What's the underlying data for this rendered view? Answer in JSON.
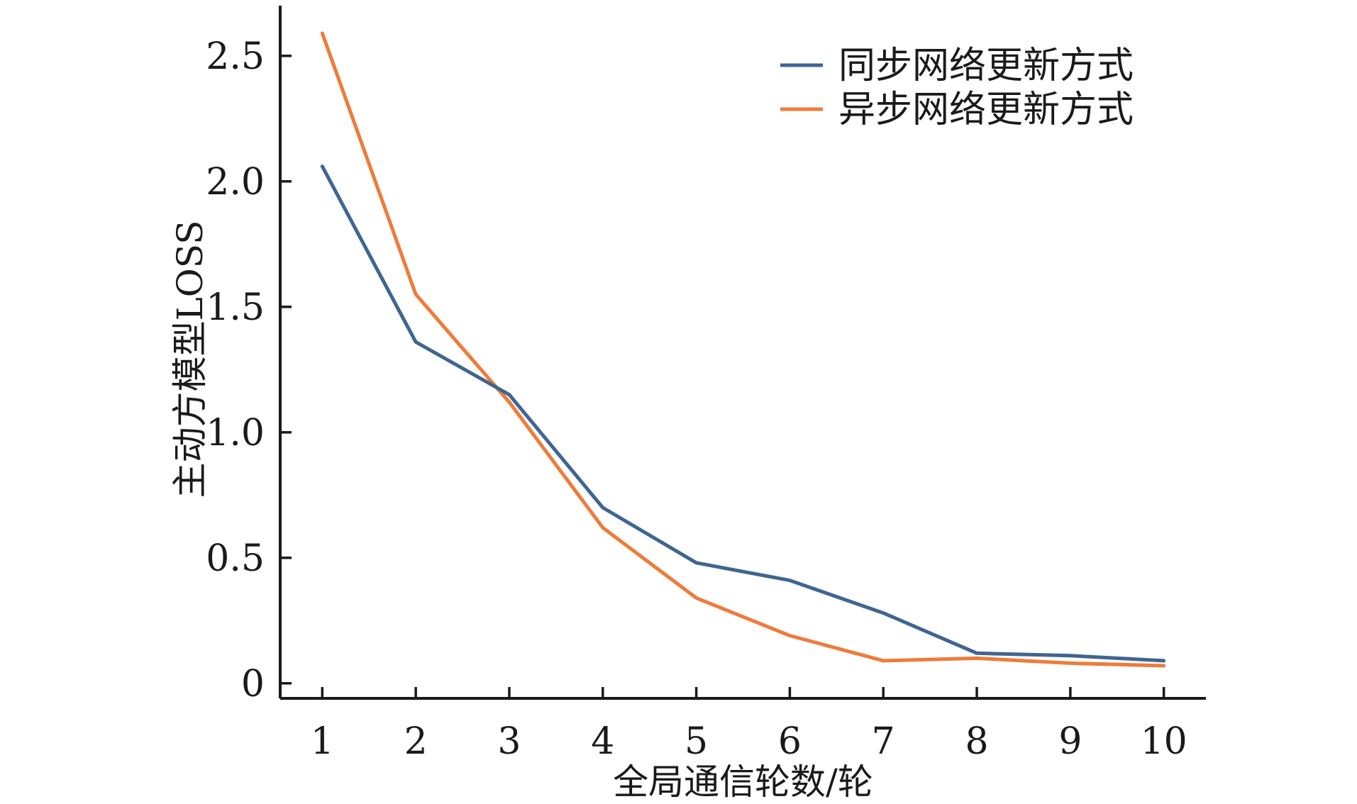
{
  "chart_data": {
    "type": "line",
    "xlabel": "全局通信轮数/轮",
    "ylabel": "主动方模型LOSS",
    "x": [
      1,
      2,
      3,
      4,
      5,
      6,
      7,
      8,
      9,
      10
    ],
    "xticks": [
      "1",
      "2",
      "3",
      "4",
      "5",
      "6",
      "7",
      "8",
      "9",
      "10"
    ],
    "yticks": [
      {
        "value": 0,
        "label": "0"
      },
      {
        "value": 0.5,
        "label": "0.5"
      },
      {
        "value": 1.0,
        "label": "1.0"
      },
      {
        "value": 1.5,
        "label": "1.5"
      },
      {
        "value": 2.0,
        "label": "2.0"
      },
      {
        "value": 2.5,
        "label": "2.5"
      }
    ],
    "xlim": [
      0.55,
      10.45
    ],
    "ylim": [
      -0.06,
      2.7
    ],
    "grid": false,
    "legend_position": "top-right",
    "series": [
      {
        "name": "同步网络更新方式",
        "color": "#3f6591",
        "values": [
          2.06,
          1.36,
          1.15,
          0.7,
          0.48,
          0.41,
          0.28,
          0.12,
          0.11,
          0.09
        ]
      },
      {
        "name": "异步网络更新方式",
        "color": "#ef7b3a",
        "values": [
          2.59,
          1.55,
          1.12,
          0.62,
          0.34,
          0.19,
          0.09,
          0.1,
          0.08,
          0.07
        ]
      }
    ]
  }
}
